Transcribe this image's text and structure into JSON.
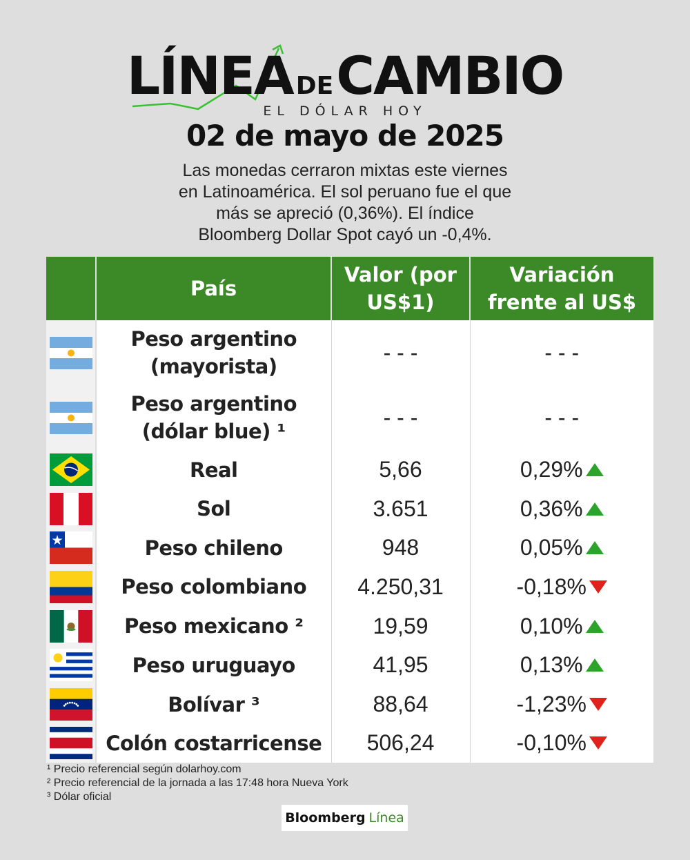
{
  "header": {
    "logo_part1": "LÍNEA",
    "logo_part2": "DE",
    "logo_part3": "CAMBIO",
    "logo_subtitle": "EL DÓLAR HOY",
    "date": "02 de mayo de 2025",
    "intro_lines": [
      "Las monedas cerraron mixtas este viernes",
      "en Latinoamérica. El sol peruano fue el que",
      "más se apreció (0,36%). El índice",
      "Bloomberg Dollar Spot cayó un -0,4%."
    ]
  },
  "table": {
    "headers": {
      "country": "País",
      "value": "Valor (por US$1)",
      "change": "Variación frente al US$"
    },
    "header_color": "#3b8a27",
    "rows": [
      {
        "flag": "argentina-flag-icon",
        "name_line1": "Peso argentino",
        "name_line2": "(mayorista)",
        "value": "- - -",
        "change": "- - -",
        "direction": "none"
      },
      {
        "flag": "argentina-flag-icon",
        "name_line1": "Peso argentino",
        "name_line2": "(dólar blue) ¹",
        "value": "- - -",
        "change": "- - -",
        "direction": "none"
      },
      {
        "flag": "brazil-flag-icon",
        "name_line1": "Real",
        "name_line2": "",
        "value": "5,66",
        "change": "0,29%",
        "direction": "up"
      },
      {
        "flag": "peru-flag-icon",
        "name_line1": "Sol",
        "name_line2": "",
        "value": "3.651",
        "change": "0,36%",
        "direction": "up"
      },
      {
        "flag": "chile-flag-icon",
        "name_line1": "Peso chileno",
        "name_line2": "",
        "value": "948",
        "change": "0,05%",
        "direction": "up"
      },
      {
        "flag": "colombia-flag-icon",
        "name_line1": "Peso colombiano",
        "name_line2": "",
        "value": "4.250,31",
        "change": "-0,18%",
        "direction": "down"
      },
      {
        "flag": "mexico-flag-icon",
        "name_line1": "Peso mexicano ²",
        "name_line2": "",
        "value": "19,59",
        "change": "0,10%",
        "direction": "up"
      },
      {
        "flag": "uruguay-flag-icon",
        "name_line1": "Peso uruguayo",
        "name_line2": "",
        "value": "41,95",
        "change": "0,13%",
        "direction": "up"
      },
      {
        "flag": "venezuela-flag-icon",
        "name_line1": "Bolívar ³",
        "name_line2": "",
        "value": "88,64",
        "change": "-1,23%",
        "direction": "down"
      },
      {
        "flag": "costa-rica-flag-icon",
        "name_line1": "Colón costarricense",
        "name_line2": "",
        "value": "506,24",
        "change": "-0,10%",
        "direction": "down"
      }
    ],
    "up_color": "#2ea32b",
    "down_color": "#e0221d"
  },
  "footnotes": [
    "¹ Precio referencial según dolarhoy.com",
    "² Precio referencial de la jornada a las 17:48 hora Nueva York",
    "³ Dólar oficial"
  ],
  "brand": {
    "part1": "Bloomberg",
    "part2": "Línea"
  }
}
